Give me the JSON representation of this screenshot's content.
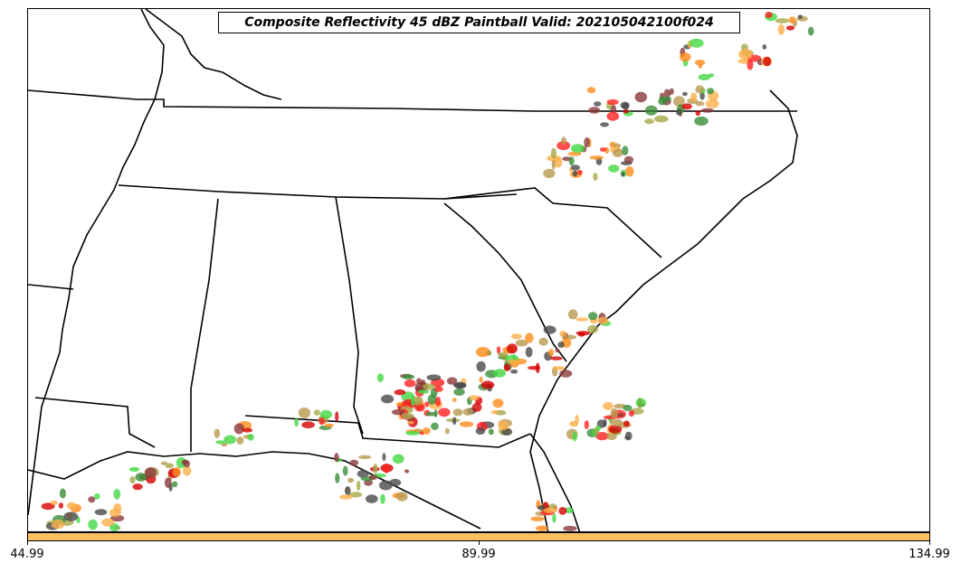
{
  "title": "Composite Reflectivity 45 dBZ Paintball Valid: 202105042100f024",
  "colorbar": {
    "color": "#FDBF60",
    "ticks": [
      "44.99",
      "89.99",
      "134.99"
    ]
  },
  "member_colors": [
    "#FF2020",
    "#D40000",
    "#FF8C1A",
    "#FDB04C",
    "#44D844",
    "#3A8E3A",
    "#A8A848",
    "#8A3A3A",
    "#4A4A4A",
    "#B89A50"
  ],
  "region": "Southeastern United States"
}
